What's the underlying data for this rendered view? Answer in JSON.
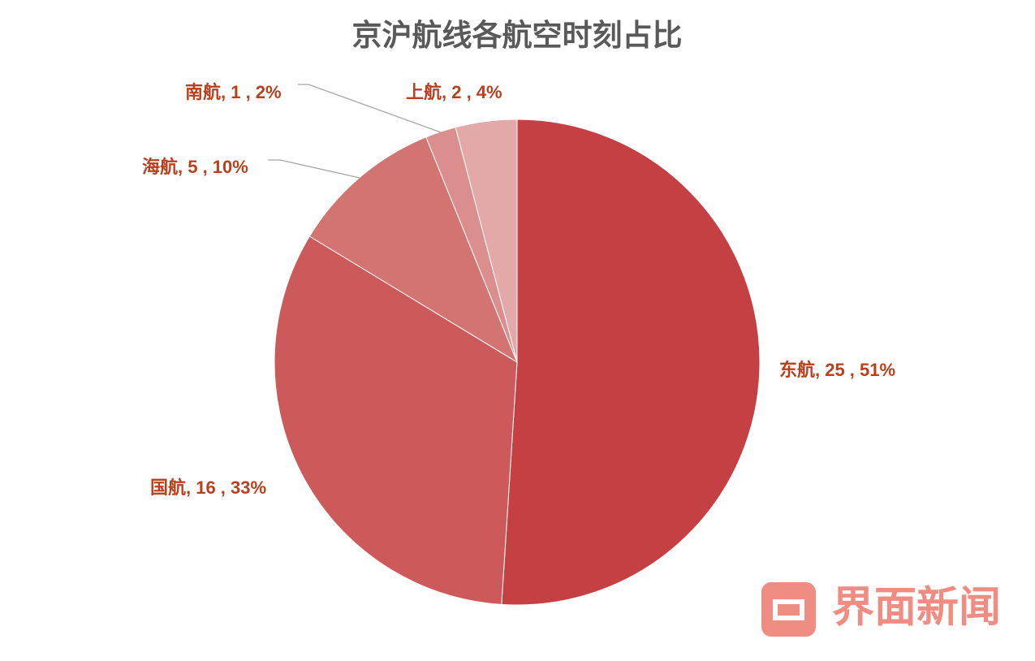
{
  "chart_data": {
    "type": "pie",
    "title": "京沪航线各航空时刻占比",
    "categories": [
      "东航",
      "国航",
      "海航",
      "南航",
      "上航"
    ],
    "values": [
      25,
      16,
      5,
      1,
      2
    ],
    "value_labels": [
      "东航, 25 , 51%",
      "国航, 16 , 33%",
      "海航, 5 , 10%",
      "南航, 1 , 2%",
      "上航, 2 , 4%"
    ],
    "colors": [
      "#c44042",
      "#cd5a5a",
      "#d27472",
      "#da8e8d",
      "#e2a9a8"
    ],
    "watermark": "界面新闻"
  }
}
